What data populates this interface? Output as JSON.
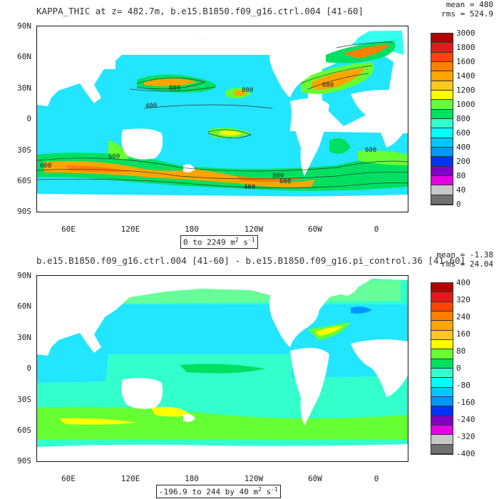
{
  "panel1": {
    "title": "KAPPA_THIC at z= 482.7m, b.e15.B1850.f09_g16.ctrl.004 [41-60]",
    "mean_label": "mean = 480",
    "rms_label": "rms = 524.9",
    "range_text": "0 to 2249 m",
    "range_unit_exp": "2",
    "range_unit_tail": " s",
    "range_unit_exp2": "-1",
    "colorbar": {
      "labels": [
        "3000",
        "1800",
        "1600",
        "1400",
        "1200",
        "1000",
        "800",
        "600",
        "400",
        "200",
        "80",
        "40",
        "0"
      ],
      "colors": [
        "#b30000",
        "#e31a1c",
        "#ff4500",
        "#ff7f00",
        "#ffa500",
        "#ffc820",
        "#ffff00",
        "#66ff33",
        "#00e060",
        "#33ffcc",
        "#00ffff",
        "#00c8ff",
        "#0096ff",
        "#0032ff",
        "#8000c8",
        "#e600e6",
        "#c8c8c8",
        "#707070"
      ]
    },
    "contour_labels": [
      "800",
      "400",
      "800",
      "600",
      "600",
      "600",
      "600",
      "800",
      "400",
      "600"
    ]
  },
  "panel2": {
    "title": "b.e15.B1850.f09_g16.ctrl.004 [41-60] - b.e15.B1850.f09_g16.pi_control.36 [41-60]",
    "mean_label": "mean = -1.38",
    "rms_label": "rms = 24.04",
    "range_text": "-196.9 to 244 by 40 m",
    "range_unit_exp": "2",
    "range_unit_tail": " s",
    "range_unit_exp2": "-1",
    "colorbar": {
      "labels": [
        "400",
        "320",
        "240",
        "160",
        "80",
        "0",
        "-80",
        "-160",
        "-240",
        "-320",
        "-400"
      ],
      "colors": [
        "#b30000",
        "#e31a1c",
        "#ff4500",
        "#ff7f00",
        "#ffa500",
        "#ffc820",
        "#ffff00",
        "#66ff33",
        "#00e060",
        "#33ffcc",
        "#00ffff",
        "#00c8ff",
        "#0096ff",
        "#0032ff",
        "#8000c8",
        "#e600e6",
        "#c8c8c8",
        "#707070"
      ]
    }
  },
  "axes": {
    "lat_labels": [
      "90N",
      "60N",
      "30N",
      "0",
      "30S",
      "60S",
      "90S"
    ],
    "lon_labels": [
      "60E",
      "120E",
      "180",
      "120W",
      "60W",
      "0"
    ]
  }
}
